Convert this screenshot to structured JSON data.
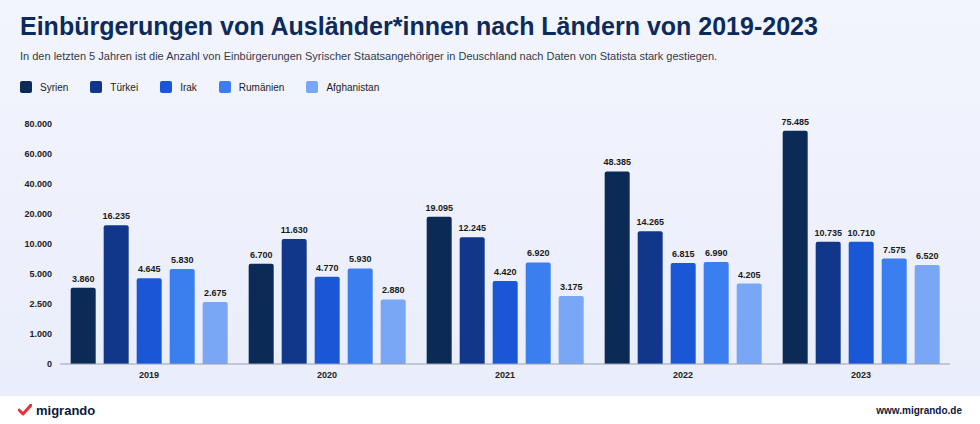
{
  "chart_data": {
    "type": "bar",
    "title": "Einbürgerungen von Ausländer*innen nach Ländern von 2019-2023",
    "subtitle": "In den letzten 5 Jahren ist die Anzahl von Einbürgerungen Syrischer Staatsangehöriger in Deuschland nach Daten von Statista stark gestiegen.",
    "categories": [
      "2019",
      "2020",
      "2021",
      "2022",
      "2023"
    ],
    "series": [
      {
        "name": "Syrien",
        "color": "#0b2a55",
        "values": [
          3860,
          6700,
          19095,
          48385,
          75485
        ],
        "value_labels": [
          "3.860",
          "6.700",
          "19.095",
          "48.385",
          "75.485"
        ]
      },
      {
        "name": "Türkei",
        "color": "#11378a",
        "values": [
          16235,
          11630,
          12245,
          14265,
          10735
        ],
        "value_labels": [
          "16.235",
          "11.630",
          "12.245",
          "14.265",
          "10.735"
        ]
      },
      {
        "name": "Irak",
        "color": "#1957d6",
        "values": [
          4645,
          4770,
          4420,
          6815,
          10710
        ],
        "value_labels": [
          "4.645",
          "4.770",
          "4.420",
          "6.815",
          "10.710"
        ]
      },
      {
        "name": "Rumänien",
        "color": "#3a7ef0",
        "values": [
          5830,
          5930,
          6920,
          6990,
          7575
        ],
        "value_labels": [
          "5.830",
          "5.930",
          "6.920",
          "6.990",
          "7.575"
        ]
      },
      {
        "name": "Afghanistan",
        "color": "#79a6f5",
        "values": [
          2675,
          2880,
          3175,
          4205,
          6520
        ],
        "value_labels": [
          "2.675",
          "2.880",
          "3.175",
          "4.205",
          "6.520"
        ]
      }
    ],
    "ylim": [
      0,
      80000
    ],
    "yticks": [
      0,
      {
        "value": 1000,
        "label": "1.000"
      },
      {
        "value": 2500,
        "label": "2.500"
      },
      {
        "value": 5000,
        "label": "5.000"
      },
      {
        "value": 10000,
        "label": "10.000"
      },
      {
        "value": 20000,
        "label": "20.000"
      },
      {
        "value": 40000,
        "label": "40.000"
      },
      {
        "value": 60000,
        "label": "60.000"
      },
      {
        "value": 80000,
        "label": "80.000"
      }
    ],
    "grid": false,
    "legend": "top-left",
    "data_labels": true
  },
  "footer": {
    "brand": "migrando",
    "url": "www.migrando.de"
  }
}
